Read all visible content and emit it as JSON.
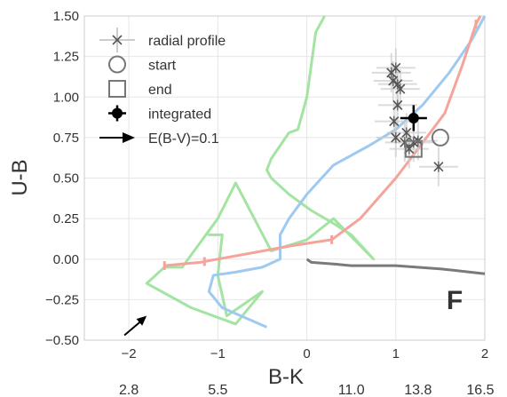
{
  "chart_data": {
    "type": "line",
    "xlabel": "B-K",
    "ylabel": "U-B",
    "xlim": [
      -2.5,
      2.0
    ],
    "ylim": [
      -0.5,
      1.5
    ],
    "x_ticks": [
      -2,
      -1,
      0,
      1,
      2
    ],
    "x_tick_labels": [
      "−2",
      "−1",
      "0",
      "1",
      "2"
    ],
    "y_ticks": [
      -0.5,
      -0.25,
      0.0,
      0.25,
      0.5,
      0.75,
      1.0,
      1.25,
      1.5
    ],
    "y_tick_labels": [
      "−0.50",
      "−0.25",
      "0.00",
      "0.25",
      "0.50",
      "0.75",
      "1.00",
      "1.25",
      "1.50"
    ],
    "secondary_x_labels": [
      {
        "x": -2.0,
        "text": "2.8"
      },
      {
        "x": -1.0,
        "text": "5.5"
      },
      {
        "x": 0.5,
        "text": "11.0"
      },
      {
        "x": 1.25,
        "text": "13.8"
      },
      {
        "x": 1.95,
        "text": "16.5"
      }
    ],
    "grid": true,
    "legend_placement": "top-left",
    "legend": [
      {
        "label": "radial profile",
        "marker": "x-star"
      },
      {
        "label": "start",
        "marker": "open-circle"
      },
      {
        "label": "end",
        "marker": "open-square"
      },
      {
        "label": "integrated",
        "marker": "filled-circle-errorbar"
      },
      {
        "label": "E(B-V)=0.1",
        "marker": "arrow"
      }
    ],
    "annotation": {
      "text": "F",
      "color": "#f4a49b"
    },
    "colors": {
      "green": "#a3e4a3",
      "blue": "#9ec9f1",
      "red": "#f4a49b",
      "gray": "#7a7a7a",
      "markers": "#555555"
    },
    "series": [
      {
        "color": "#a3e4a3",
        "points": [
          [
            0.2,
            1.5
          ],
          [
            0.1,
            1.4
          ],
          [
            0.05,
            1.2
          ],
          [
            0.0,
            1.0
          ],
          [
            -0.1,
            0.8
          ],
          [
            -0.2,
            0.78
          ],
          [
            -0.4,
            0.62
          ],
          [
            -0.45,
            0.55
          ],
          [
            -0.4,
            0.5
          ],
          [
            -0.2,
            0.4
          ],
          [
            0.05,
            0.3
          ],
          [
            0.3,
            0.22
          ],
          [
            0.5,
            0.15
          ],
          [
            0.75,
            0.0
          ],
          [
            0.3,
            0.25
          ],
          [
            0.0,
            0.12
          ],
          [
            -0.4,
            0.05
          ],
          [
            -0.8,
            0.47
          ],
          [
            -1.0,
            0.25
          ],
          [
            -1.4,
            -0.05
          ],
          [
            -1.6,
            -0.05
          ],
          [
            -1.8,
            -0.15
          ],
          [
            -1.3,
            -0.3
          ],
          [
            -0.8,
            -0.4
          ],
          [
            -0.5,
            -0.2
          ],
          [
            -0.9,
            -0.35
          ],
          [
            -1.0,
            -0.1
          ],
          [
            -0.95,
            0.15
          ],
          [
            -1.1,
            0.15
          ],
          [
            -1.0,
            0.15
          ]
        ]
      },
      {
        "color": "#9ec9f1",
        "points": [
          [
            -0.45,
            -0.42
          ],
          [
            -0.95,
            -0.3
          ],
          [
            -1.1,
            -0.2
          ],
          [
            -1.05,
            -0.1
          ],
          [
            -0.8,
            -0.08
          ],
          [
            -0.5,
            -0.05
          ],
          [
            -0.3,
            0.0
          ],
          [
            -0.3,
            0.15
          ],
          [
            -0.2,
            0.25
          ],
          [
            0.0,
            0.4
          ],
          [
            0.3,
            0.58
          ],
          [
            0.7,
            0.7
          ],
          [
            1.0,
            0.8
          ],
          [
            1.3,
            0.95
          ],
          [
            1.6,
            1.15
          ],
          [
            1.85,
            1.35
          ],
          [
            2.0,
            1.5
          ]
        ]
      },
      {
        "color": "#f4a49b",
        "points": [
          [
            -1.6,
            -0.04
          ],
          [
            -1.2,
            -0.02
          ],
          [
            -0.7,
            0.03
          ],
          [
            -0.2,
            0.08
          ],
          [
            0.28,
            0.12
          ],
          [
            0.6,
            0.25
          ],
          [
            1.0,
            0.5
          ],
          [
            1.25,
            0.68
          ],
          [
            1.55,
            0.9
          ],
          [
            1.75,
            1.2
          ],
          [
            1.9,
            1.45
          ],
          [
            1.95,
            1.5
          ]
        ],
        "tick_marks_x": [
          -1.6,
          -1.15,
          0.28,
          1.9
        ]
      },
      {
        "color": "#7a7a7a",
        "points": [
          [
            0.0,
            0.0
          ],
          [
            0.05,
            -0.02
          ],
          [
            0.3,
            -0.03
          ],
          [
            0.5,
            -0.04
          ],
          [
            1.0,
            -0.04
          ],
          [
            1.5,
            -0.06
          ],
          [
            2.0,
            -0.09
          ]
        ]
      }
    ],
    "radial_profile": [
      [
        0.95,
        1.15
      ],
      [
        0.97,
        1.1
      ],
      [
        1.0,
        1.18
      ],
      [
        1.02,
        1.08
      ],
      [
        1.05,
        1.05
      ],
      [
        1.02,
        0.95
      ],
      [
        0.98,
        0.85
      ],
      [
        1.0,
        0.75
      ],
      [
        1.1,
        0.72
      ],
      [
        1.15,
        0.68
      ],
      [
        1.2,
        0.72
      ],
      [
        1.12,
        0.78
      ],
      [
        1.25,
        0.73
      ],
      [
        1.48,
        0.57
      ]
    ],
    "start": [
      1.5,
      0.75
    ],
    "end": [
      1.2,
      0.68
    ],
    "integrated": {
      "x": 1.2,
      "y": 0.87,
      "xerr": 0.15,
      "yerr": 0.08
    },
    "reddening_vector": {
      "from": [
        -2.05,
        -0.47
      ],
      "to": [
        -1.8,
        -0.35
      ]
    }
  }
}
